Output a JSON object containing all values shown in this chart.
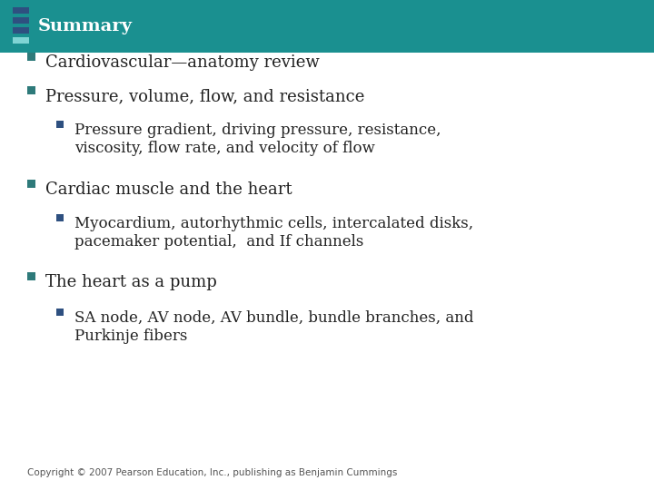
{
  "title": "Summary",
  "title_bg_color": "#1a9090",
  "title_text_color": "#ffffff",
  "title_fontsize": 14,
  "bg_color": "#ffffff",
  "icon_color_top": "#7fd4d4",
  "icon_color_mid": "#2e5080",
  "bullet_color_l1": "#2e7a7a",
  "bullet_color_l2": "#2e5080",
  "bullet_items_l1": [
    "Cardiovascular—anatomy review",
    "Pressure, volume, flow, and resistance",
    "Cardiac muscle and the heart",
    "The heart as a pump"
  ],
  "bullet_items_l2": {
    "1": "Pressure gradient, driving pressure, resistance,\nviscosity, flow rate, and velocity of flow",
    "2": "Myocardium, autorhythmic cells, intercalated disks,\npacemaker potential,  and If channels",
    "3": "SA node, AV node, AV bundle, bundle branches, and\nPurkinje fibers"
  },
  "l1_fontsize": 13,
  "l2_fontsize": 12,
  "text_color": "#222222",
  "copyright": "Copyright © 2007 Pearson Education, Inc., publishing as Benjamin Cummings",
  "copyright_fontsize": 7.5,
  "copyright_color": "#555555"
}
